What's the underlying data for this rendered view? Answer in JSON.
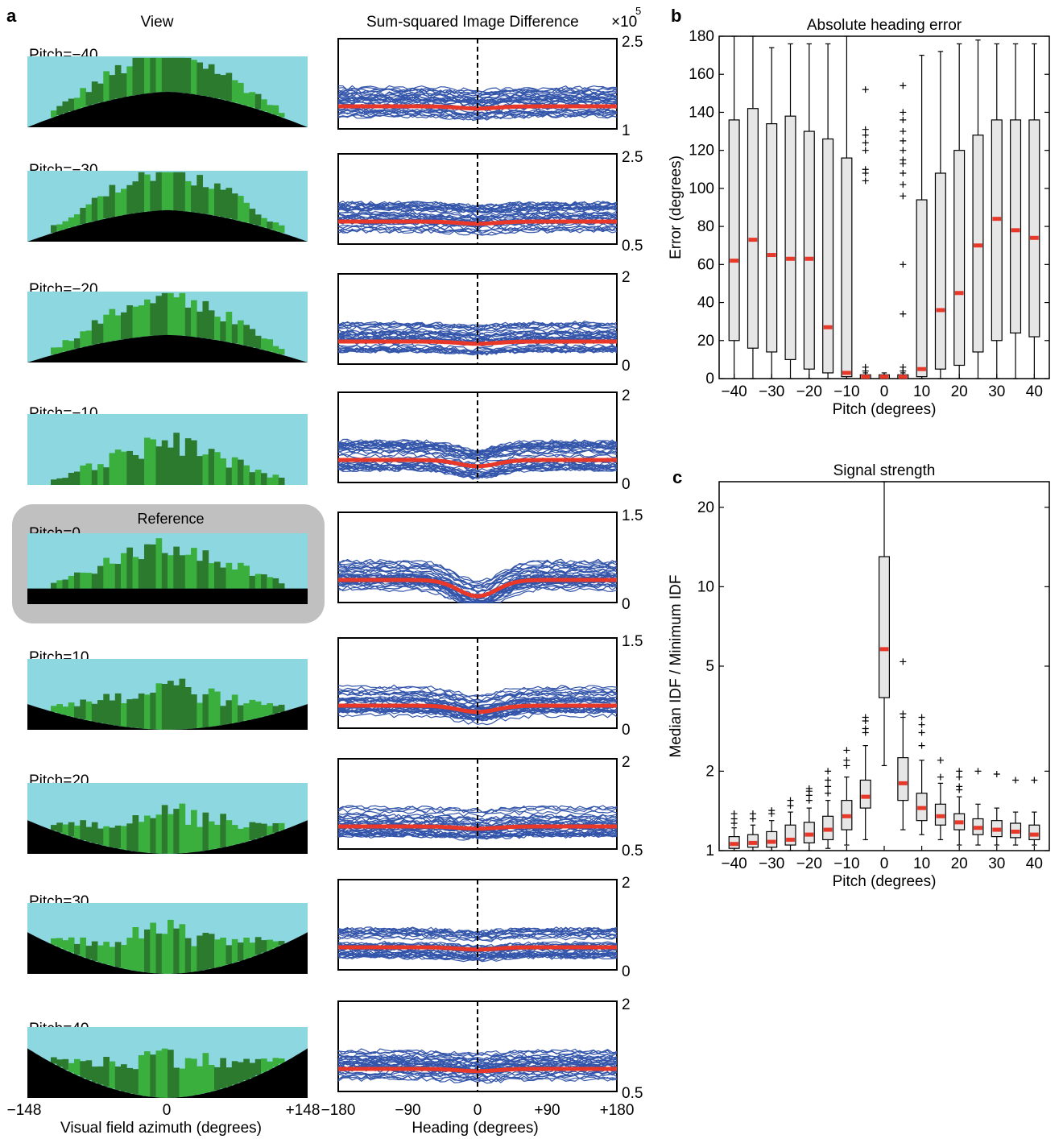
{
  "panel_letters": {
    "a": "a",
    "b": "b",
    "c": "c"
  },
  "panel_a": {
    "view_header": "View",
    "idf_header": "Sum-squared Image Difference",
    "idf_multiplier_base": "×10",
    "idf_multiplier_exp": "5",
    "reference_label": "Reference",
    "xlabel_view": "Visual field azimuth (degrees)",
    "xticks_view": [
      "−148",
      "0",
      "+148"
    ],
    "xlabel_idf": "Heading (degrees)",
    "xticks_idf": [
      "−180",
      "−90",
      "0",
      "+90",
      "+180"
    ],
    "rows": [
      {
        "label": "Pitch=−40",
        "yticks": [
          "2.5",
          "1"
        ],
        "ylim": [
          1,
          2.5
        ]
      },
      {
        "label": "Pitch=−30",
        "yticks": [
          "2.5",
          "0.5"
        ],
        "ylim": [
          0.5,
          2.5
        ]
      },
      {
        "label": "Pitch=−20",
        "yticks": [
          "2",
          "0"
        ],
        "ylim": [
          0,
          2
        ]
      },
      {
        "label": "Pitch=−10",
        "yticks": [
          "2",
          "0"
        ],
        "ylim": [
          0,
          2
        ]
      },
      {
        "label": "Pitch=0",
        "yticks": [
          "1.5",
          "0"
        ],
        "ylim": [
          0,
          1.5
        ]
      },
      {
        "label": "Pitch=10",
        "yticks": [
          "1.5",
          "0"
        ],
        "ylim": [
          0,
          1.5
        ]
      },
      {
        "label": "Pitch=20",
        "yticks": [
          "2",
          "0.5"
        ],
        "ylim": [
          0.5,
          2
        ]
      },
      {
        "label": "Pitch=30",
        "yticks": [
          "2",
          "0"
        ],
        "ylim": [
          0,
          2
        ]
      },
      {
        "label": "Pitch=40",
        "yticks": [
          "2",
          "0.5"
        ],
        "ylim": [
          0.5,
          2
        ]
      }
    ],
    "colors": {
      "sky": "#8dd7e1",
      "ground": "#000000",
      "grass_light": "#3aaf3e",
      "grass_dark": "#2b7a2e",
      "idf_line": "#3355aa",
      "median_line": "#e8382a",
      "reference_box": "#c0c0c0"
    }
  },
  "chart_data": [
    {
      "type": "box",
      "title": "Absolute heading error",
      "xlabel": "Pitch (degrees)",
      "ylabel": "Error (degrees)",
      "ylim": [
        0,
        180
      ],
      "yticks": [
        0,
        20,
        40,
        60,
        80,
        100,
        120,
        140,
        160,
        180
      ],
      "xticks": [
        "−40",
        "−30",
        "−20",
        "−10",
        "0",
        "10",
        "20",
        "30",
        "40"
      ],
      "categories": [
        -40,
        -35,
        -30,
        -25,
        -20,
        -15,
        -10,
        -5,
        0,
        5,
        10,
        15,
        20,
        25,
        30,
        35,
        40
      ],
      "boxes": [
        {
          "min": 0,
          "q1": 20,
          "median": 62,
          "q3": 136,
          "max": 180,
          "outliers": []
        },
        {
          "min": 0,
          "q1": 16,
          "median": 73,
          "q3": 142,
          "max": 180,
          "outliers": []
        },
        {
          "min": 0,
          "q1": 14,
          "median": 65,
          "q3": 134,
          "max": 174,
          "outliers": []
        },
        {
          "min": 0,
          "q1": 10,
          "median": 63,
          "q3": 138,
          "max": 176,
          "outliers": []
        },
        {
          "min": 0,
          "q1": 5,
          "median": 63,
          "q3": 130,
          "max": 176,
          "outliers": []
        },
        {
          "min": 0,
          "q1": 3,
          "median": 27,
          "q3": 126,
          "max": 176,
          "outliers": []
        },
        {
          "min": 0,
          "q1": 1,
          "median": 3,
          "q3": 116,
          "max": 180,
          "outliers": []
        },
        {
          "min": 0,
          "q1": 0,
          "median": 1,
          "q3": 2,
          "max": 3,
          "outliers": [
            4,
            6,
            104,
            108,
            110,
            120,
            124,
            128,
            131,
            152
          ]
        },
        {
          "min": 0,
          "q1": 0,
          "median": 1,
          "q3": 2,
          "max": 3,
          "outliers": []
        },
        {
          "min": 0,
          "q1": 0,
          "median": 1,
          "q3": 2,
          "max": 3,
          "outliers": [
            4,
            6,
            34,
            60,
            96,
            102,
            108,
            113,
            115,
            120,
            125,
            130,
            136,
            140,
            154
          ]
        },
        {
          "min": 0,
          "q1": 1,
          "median": 5,
          "q3": 94,
          "max": 170,
          "outliers": []
        },
        {
          "min": 0,
          "q1": 5,
          "median": 36,
          "q3": 108,
          "max": 172,
          "outliers": []
        },
        {
          "min": 0,
          "q1": 7,
          "median": 45,
          "q3": 120,
          "max": 176,
          "outliers": []
        },
        {
          "min": 0,
          "q1": 14,
          "median": 70,
          "q3": 128,
          "max": 178,
          "outliers": []
        },
        {
          "min": 0,
          "q1": 20,
          "median": 84,
          "q3": 136,
          "max": 176,
          "outliers": []
        },
        {
          "min": 0,
          "q1": 24,
          "median": 78,
          "q3": 136,
          "max": 176,
          "outliers": []
        },
        {
          "min": 0,
          "q1": 22,
          "median": 74,
          "q3": 136,
          "max": 176,
          "outliers": []
        }
      ]
    },
    {
      "type": "box",
      "title": "Signal strength",
      "xlabel": "Pitch (degrees)",
      "ylabel": "Median IDF / Minimum IDF",
      "yscale": "log",
      "ylim": [
        1,
        25
      ],
      "yticks": [
        1,
        2,
        5,
        10,
        20
      ],
      "xticks": [
        "−40",
        "−30",
        "−20",
        "−10",
        "0",
        "10",
        "20",
        "30",
        "40"
      ],
      "categories": [
        -40,
        -35,
        -30,
        -25,
        -20,
        -15,
        -10,
        -5,
        0,
        5,
        10,
        15,
        20,
        25,
        30,
        35,
        40
      ],
      "boxes": [
        {
          "min": 1.0,
          "q1": 1.02,
          "median": 1.06,
          "q3": 1.13,
          "max": 1.22,
          "outliers": [
            1.27,
            1.32,
            1.38
          ]
        },
        {
          "min": 1.0,
          "q1": 1.03,
          "median": 1.07,
          "q3": 1.15,
          "max": 1.25,
          "outliers": [
            1.32,
            1.38
          ]
        },
        {
          "min": 1.0,
          "q1": 1.03,
          "median": 1.08,
          "q3": 1.18,
          "max": 1.3,
          "outliers": [
            1.38,
            1.42
          ]
        },
        {
          "min": 1.0,
          "q1": 1.05,
          "median": 1.1,
          "q3": 1.25,
          "max": 1.4,
          "outliers": [
            1.48,
            1.55
          ]
        },
        {
          "min": 1.0,
          "q1": 1.07,
          "median": 1.15,
          "q3": 1.28,
          "max": 1.45,
          "outliers": [
            1.55,
            1.62,
            1.68,
            1.72
          ]
        },
        {
          "min": 1.02,
          "q1": 1.1,
          "median": 1.2,
          "q3": 1.35,
          "max": 1.55,
          "outliers": [
            1.65,
            1.75,
            1.85,
            2.0
          ]
        },
        {
          "min": 1.05,
          "q1": 1.2,
          "median": 1.35,
          "q3": 1.55,
          "max": 1.9,
          "outliers": [
            2.1,
            2.2,
            2.4
          ]
        },
        {
          "min": 1.1,
          "q1": 1.45,
          "median": 1.6,
          "q3": 1.85,
          "max": 2.5,
          "outliers": [
            2.8,
            2.9,
            3.1,
            3.2
          ]
        },
        {
          "min": 2.1,
          "q1": 3.8,
          "median": 5.8,
          "q3": 13.0,
          "max": 25.0,
          "outliers": []
        },
        {
          "min": 1.2,
          "q1": 1.55,
          "median": 1.8,
          "q3": 2.25,
          "max": 3.2,
          "outliers": [
            3.3,
            5.2
          ]
        },
        {
          "min": 1.15,
          "q1": 1.3,
          "median": 1.45,
          "q3": 1.65,
          "max": 2.2,
          "outliers": [
            2.5,
            2.8,
            3.0,
            3.2
          ]
        },
        {
          "min": 1.1,
          "q1": 1.25,
          "median": 1.35,
          "q3": 1.5,
          "max": 1.8,
          "outliers": [
            1.9,
            2.2
          ]
        },
        {
          "min": 1.05,
          "q1": 1.2,
          "median": 1.28,
          "q3": 1.38,
          "max": 1.6,
          "outliers": [
            1.7,
            1.75,
            1.9,
            2.0
          ]
        },
        {
          "min": 1.05,
          "q1": 1.15,
          "median": 1.22,
          "q3": 1.32,
          "max": 1.5,
          "outliers": [
            2.0
          ]
        },
        {
          "min": 1.05,
          "q1": 1.13,
          "median": 1.2,
          "q3": 1.3,
          "max": 1.45,
          "outliers": [
            1.95
          ]
        },
        {
          "min": 1.05,
          "q1": 1.12,
          "median": 1.18,
          "q3": 1.27,
          "max": 1.4,
          "outliers": [
            1.85
          ]
        },
        {
          "min": 1.05,
          "q1": 1.1,
          "median": 1.15,
          "q3": 1.25,
          "max": 1.4,
          "outliers": [
            1.85
          ]
        }
      ]
    }
  ]
}
